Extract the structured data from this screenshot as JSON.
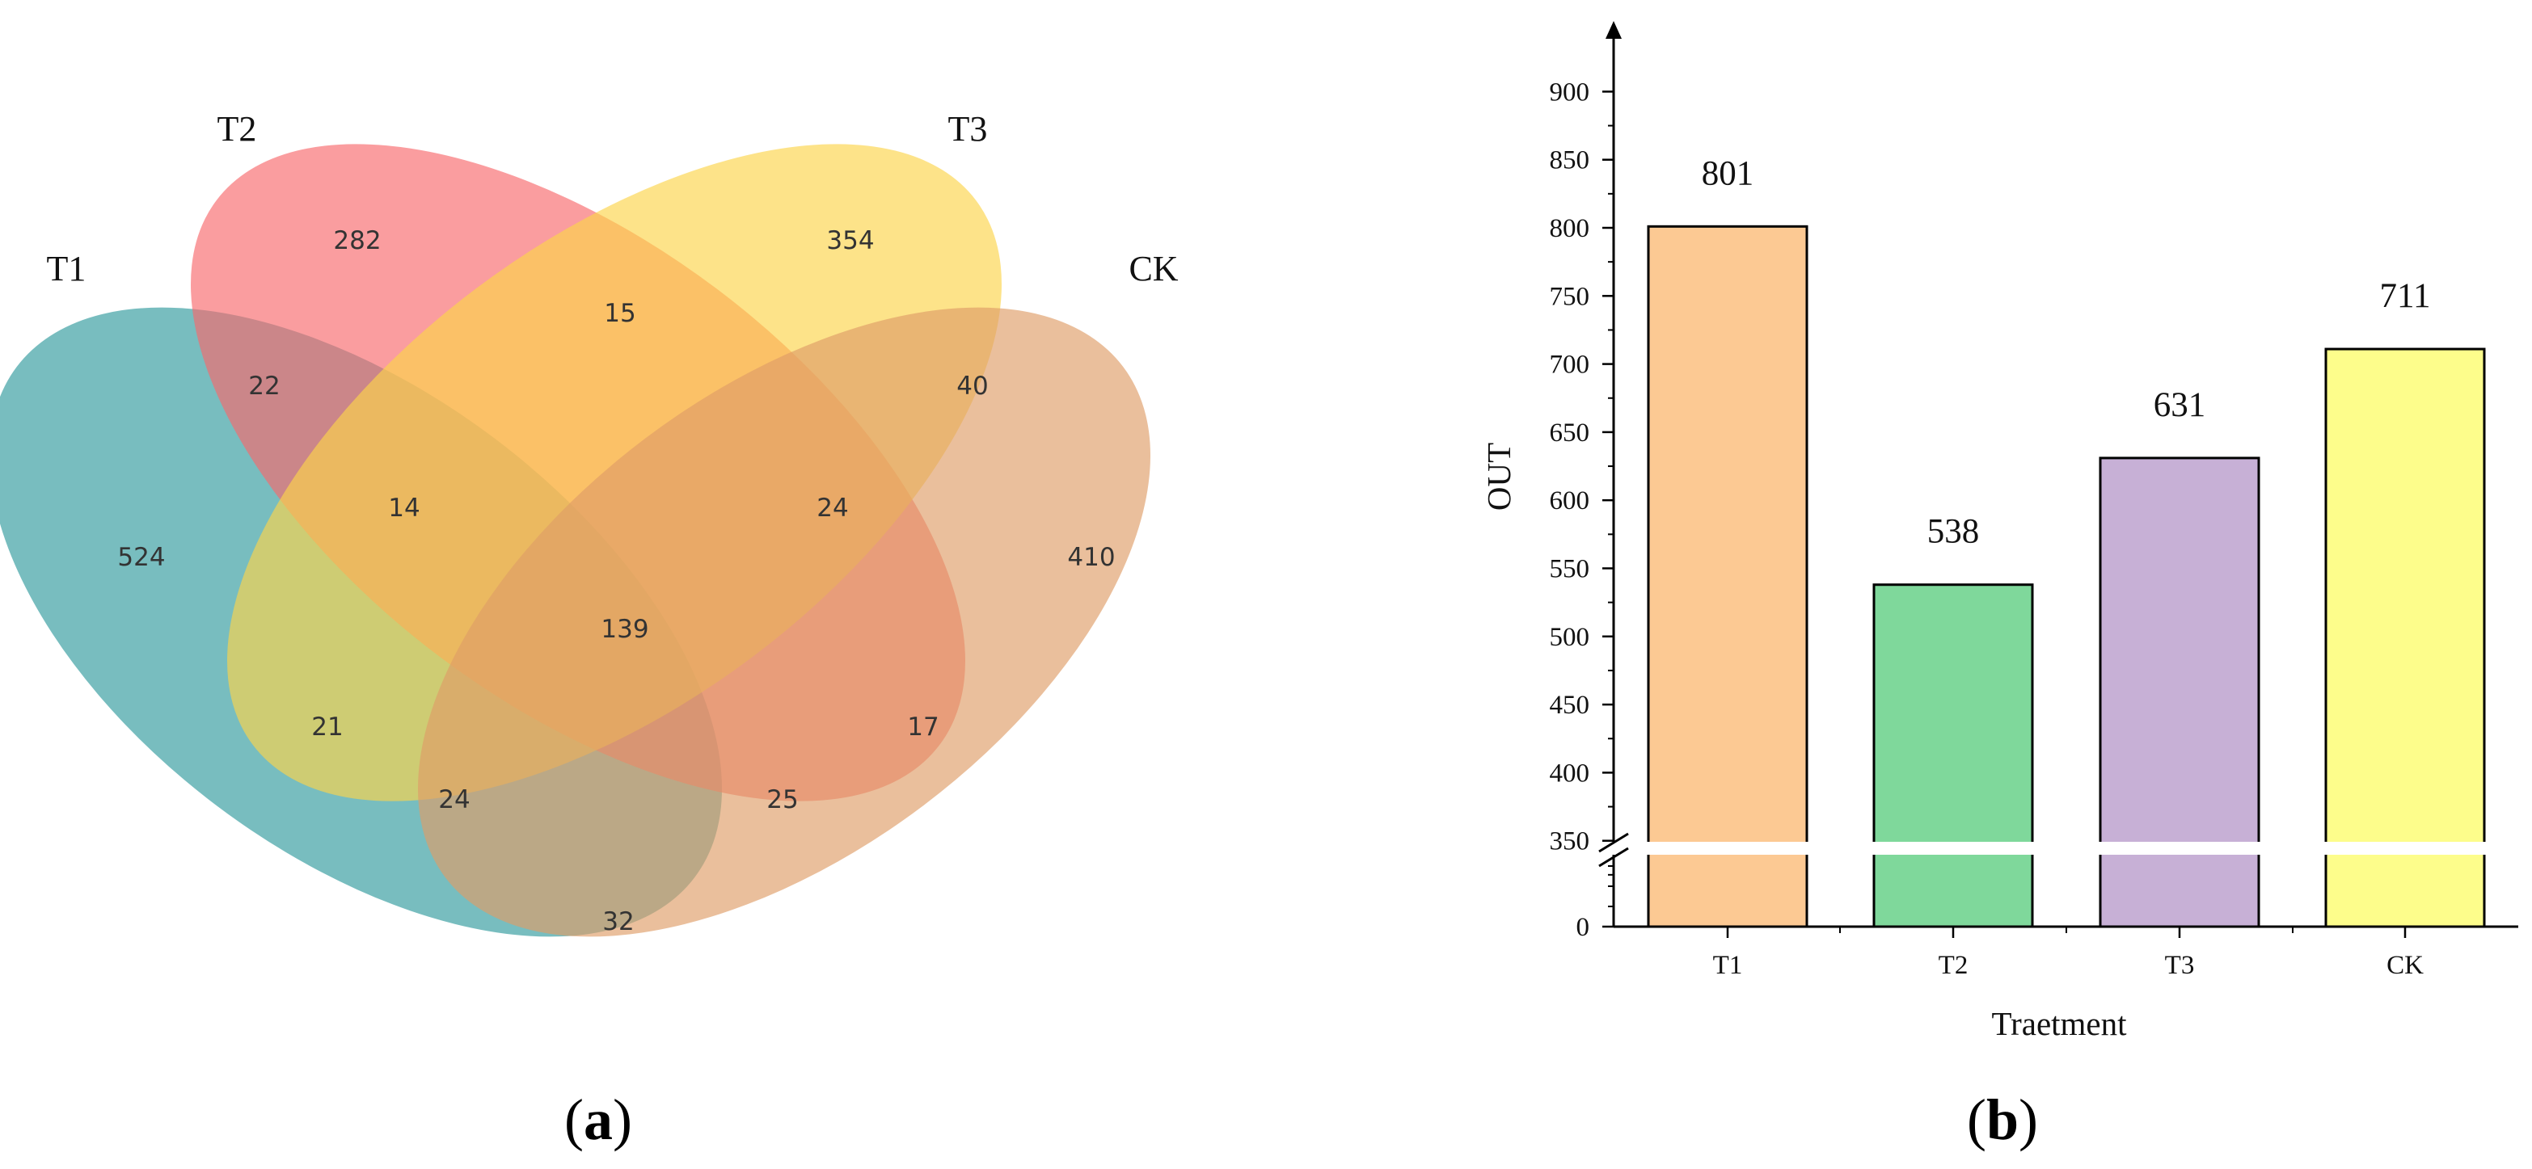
{
  "chart_data": [
    {
      "type": "venn",
      "panel": "a",
      "sets": [
        "T1",
        "T2",
        "T3",
        "CK"
      ],
      "colors": {
        "T1": "#2f9a9c",
        "T2": "#f7696b",
        "T3": "#fcd449",
        "CK": "#de9c67"
      },
      "regions": {
        "T1_only": 524,
        "T2_only": 282,
        "T3_only": 354,
        "CK_only": 410,
        "T1_T2": 22,
        "T2_T3": 15,
        "T3_CK": 40,
        "T1_CK": 32,
        "T1_T3": 21,
        "T2_CK": 17,
        "T1_T2_T3": 14,
        "T2_T3_CK": 24,
        "T1_T3_CK": 24,
        "T1_T2_CK": 25,
        "T1_T2_T3_CK": 139
      }
    },
    {
      "type": "bar",
      "panel": "b",
      "categories": [
        "T1",
        "T2",
        "T3",
        "CK"
      ],
      "values": [
        801,
        538,
        631,
        711
      ],
      "colors": [
        "#fcc993",
        "#7fd89b",
        "#c7b0d6",
        "#fdfd8b"
      ],
      "xlabel": "Traetment",
      "ylabel": "OUT",
      "y_ticks_upper": [
        350,
        400,
        450,
        500,
        550,
        600,
        650,
        700,
        750,
        800,
        850,
        900
      ],
      "y_ticks_lower": [
        0
      ],
      "ylim_upper": [
        300,
        900
      ],
      "axis_break": true
    }
  ],
  "panel_labels": [
    "(a)",
    "(b)"
  ]
}
